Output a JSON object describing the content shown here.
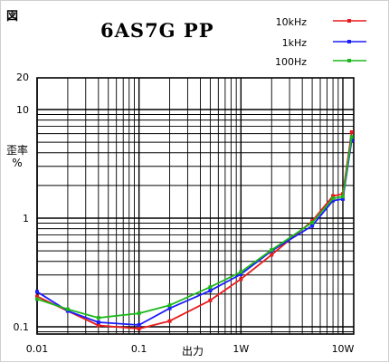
{
  "chart_data": {
    "type": "line",
    "figure_tag": "図",
    "title": "6AS7G  PP",
    "xlabel": "出力",
    "ylabel": "歪率\n%",
    "x_scale": "log",
    "y_scale": "log",
    "xlim": [
      0.01,
      15
    ],
    "ylim": [
      0.08,
      20
    ],
    "grid": true,
    "legend_position": "top-right",
    "x_ticks": [
      {
        "value": 0.01,
        "label": "0.01"
      },
      {
        "value": 0.1,
        "label": "0.1"
      },
      {
        "value": 1,
        "label": "1W"
      },
      {
        "value": 10,
        "label": "10W"
      }
    ],
    "y_ticks": [
      {
        "value": 0.1,
        "label": "0.1"
      },
      {
        "value": 1,
        "label": "1"
      },
      {
        "value": 10,
        "label": "10"
      },
      {
        "value": 20,
        "label": "20"
      }
    ],
    "series": [
      {
        "name": "10kHz",
        "color": "#e81c1c",
        "points": [
          [
            0.01,
            0.19
          ],
          [
            0.02,
            0.14
          ],
          [
            0.04,
            0.103
          ],
          [
            0.1,
            0.096
          ],
          [
            0.2,
            0.113
          ],
          [
            0.5,
            0.175
          ],
          [
            1,
            0.275
          ],
          [
            2,
            0.46
          ],
          [
            5,
            0.94
          ],
          [
            8,
            1.6
          ],
          [
            10,
            1.67
          ],
          [
            12.2,
            6.2
          ]
        ]
      },
      {
        "name": "1kHz",
        "color": "#1c1cff",
        "points": [
          [
            0.01,
            0.21
          ],
          [
            0.02,
            0.14
          ],
          [
            0.04,
            0.11
          ],
          [
            0.1,
            0.104
          ],
          [
            0.2,
            0.148
          ],
          [
            0.5,
            0.215
          ],
          [
            1,
            0.305
          ],
          [
            2,
            0.5
          ],
          [
            5,
            0.85
          ],
          [
            8,
            1.45
          ],
          [
            10,
            1.5
          ],
          [
            12.2,
            5.2
          ]
        ]
      },
      {
        "name": "100Hz",
        "color": "#1cb81c",
        "points": [
          [
            0.01,
            0.18
          ],
          [
            0.02,
            0.145
          ],
          [
            0.04,
            0.121
          ],
          [
            0.1,
            0.133
          ],
          [
            0.2,
            0.158
          ],
          [
            0.5,
            0.232
          ],
          [
            1,
            0.32
          ],
          [
            2,
            0.51
          ],
          [
            5,
            0.91
          ],
          [
            8,
            1.52
          ],
          [
            10,
            1.58
          ],
          [
            12.2,
            5.6
          ]
        ]
      }
    ]
  }
}
